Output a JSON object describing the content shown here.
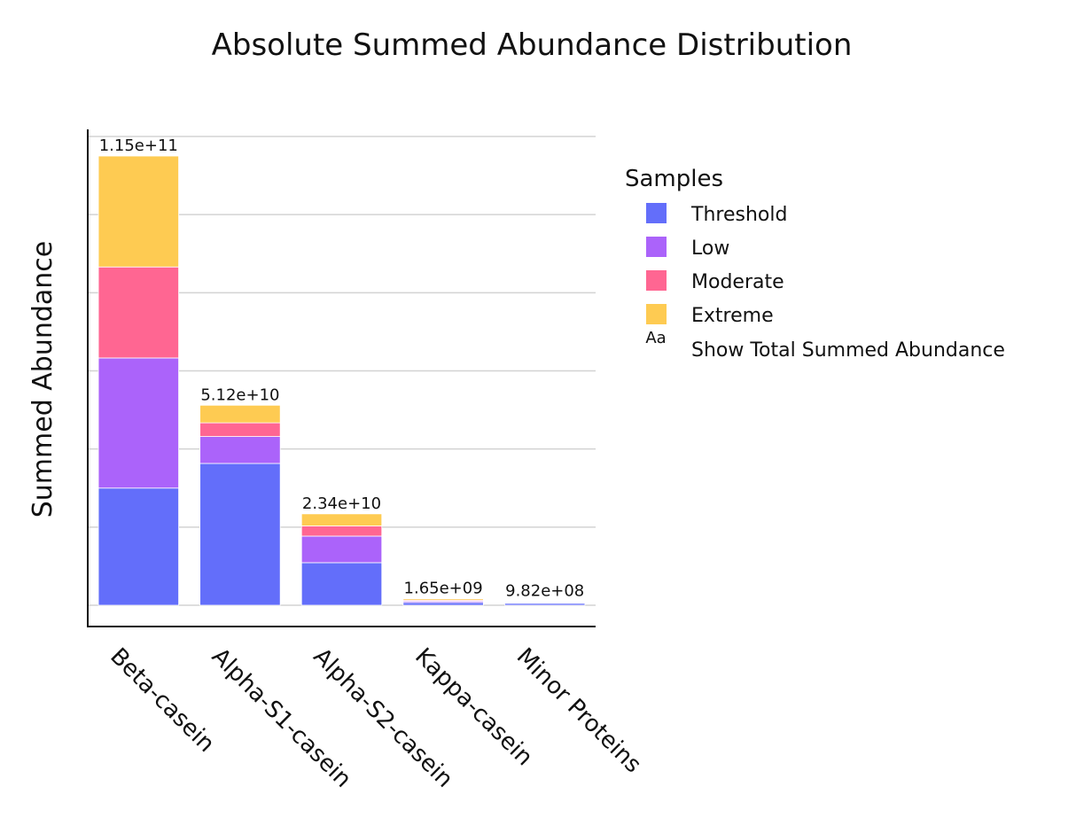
{
  "chart_data": {
    "type": "bar",
    "stacked": true,
    "title": "Absolute Summed Abundance Distribution",
    "xlabel": "",
    "ylabel": "Summed Abundance",
    "categories": [
      "Beta-casein",
      "Alpha-S1-casein",
      "Alpha-S2-casein",
      "Kappa-casein",
      "Minor Proteins"
    ],
    "ylim": [
      0,
      130000000000
    ],
    "y_gridlines": [
      0,
      20000000000,
      40000000000,
      60000000000,
      80000000000,
      100000000000,
      120000000000
    ],
    "y_tick_labels_shown": false,
    "grid": true,
    "legend_title": "Samples",
    "legend_position": "right",
    "series": [
      {
        "name": "Threshold",
        "color": "#636efa",
        "values": [
          30000000000,
          36300000000,
          10900000000,
          700000000,
          500000000
        ]
      },
      {
        "name": "Low",
        "color": "#ab63fa",
        "values": [
          33300000000,
          6900000000,
          6800000000,
          350000000,
          200000000
        ]
      },
      {
        "name": "Moderate",
        "color": "#ff6692",
        "values": [
          23300000000,
          3500000000,
          2600000000,
          250000000,
          150000000
        ]
      },
      {
        "name": "Extreme",
        "color": "#fecb52",
        "values": [
          28400000000,
          4500000000,
          3100000000,
          350000000,
          132000000
        ]
      }
    ],
    "totals": [
      115000000000,
      51200000000,
      23400000000,
      1650000000,
      982000000
    ],
    "total_labels": [
      "1.15e+11",
      "5.12e+10",
      "2.34e+10",
      "1.65e+09",
      "9.82e+08"
    ],
    "extra_legend_entry": {
      "symbol": "Aa",
      "label": "Show Total Summed Abundance"
    }
  }
}
